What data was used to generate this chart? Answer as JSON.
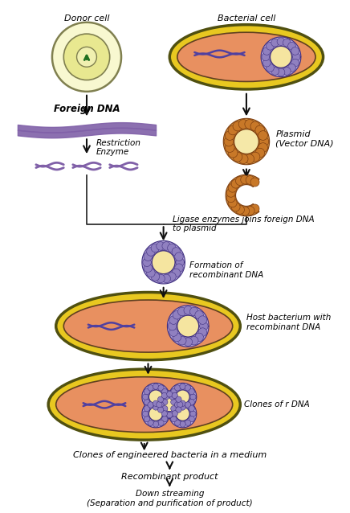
{
  "bg_color": "#ffffff",
  "donor_label": "Donor cell",
  "bacterial_label": "Bacterial cell",
  "foreign_dna_text": "Foreign DNA",
  "restriction_text": "Restriction\nEnzyme",
  "plasmid_text": "Plasmid\n(Vector DNA)",
  "ligase_text": "Ligase enzymes joins foreign DNA\nto plasmid",
  "formation_text": "Formation of\nrecombinant DNA",
  "host_text": "Host bacterium with\nrecombinant DNA",
  "clones_text": "Clones of r DNA",
  "engineered_text": "Clones of engineered bacteria in a medium",
  "recombinant_text": "Recombinant product",
  "downstream_text": "Down streaming\n(Separation and purification of product)",
  "dna_color": "#6050a0",
  "plasmid_bead_color": "#c87828",
  "plasmid_inner_color": "#f5e8b0",
  "plasmid_purple_color": "#8878b8",
  "plasmid_purple_inner": "#f5e8b0",
  "bacterium_outer": "#e8c820",
  "bacterium_inner": "#e89060",
  "donor_outer": "#f0f0b0",
  "donor_inner_ring": "#e0e060",
  "donor_nucleus": "#f8f8e0",
  "arrow_color": "#101010",
  "line_color": "#303030"
}
